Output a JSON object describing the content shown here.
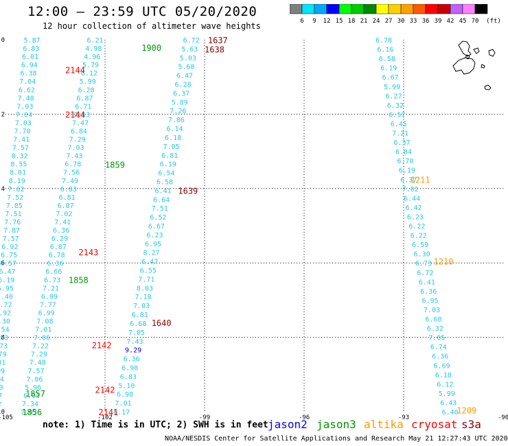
{
  "header": {
    "title": "12:00 – 23:59 UTC 05/20/2020",
    "subtitle": "12 hour collection of altimeter wave heights"
  },
  "colorbar": {
    "unit_label": "(ft)",
    "levels": [
      {
        "label": "3",
        "color": "#7f7f7f"
      },
      {
        "label": "6",
        "color": "#00e5ff"
      },
      {
        "label": "9",
        "color": "#00a8ff"
      },
      {
        "label": "12",
        "color": "#0000ff"
      },
      {
        "label": "15",
        "color": "#00ff00"
      },
      {
        "label": "18",
        "color": "#00cc00"
      },
      {
        "label": "21",
        "color": "#008a00"
      },
      {
        "label": "24",
        "color": "#ffff00"
      },
      {
        "label": "27",
        "color": "#ffd000"
      },
      {
        "label": "30",
        "color": "#ffa000"
      },
      {
        "label": "33",
        "color": "#ff5a00"
      },
      {
        "label": "36",
        "color": "#ff0000"
      },
      {
        "label": "39",
        "color": "#c80000"
      },
      {
        "label": "42",
        "color": "#c060ff"
      },
      {
        "label": "45",
        "color": "#ff80ff"
      },
      {
        "label": "70",
        "color": "#000000"
      }
    ]
  },
  "footer": {
    "note": "note: 1) Time is in UTC; 2) SWH is in feet",
    "satellites": [
      {
        "name": "jason2",
        "color": "#0000ff"
      },
      {
        "name": "jason3",
        "color": "#009600"
      },
      {
        "name": "altika",
        "color": "#ff9900"
      },
      {
        "name": "cryosat",
        "color": "#ff0000"
      },
      {
        "name": "s3a",
        "color": "#8b0000"
      }
    ],
    "credit": "NOAA/NESDIS Center for Satellite Applications and Research   May 21 12:27:43 UTC 2020"
  },
  "chart_data": {
    "type": "scatter",
    "xlabel": "",
    "ylabel": "",
    "xlim": [
      -105,
      -90
    ],
    "ylim": [
      -10,
      0
    ],
    "x_ticks": [
      "-105",
      "-102",
      "-99",
      "-96",
      "-93",
      "-90"
    ],
    "y_ticks": [
      "0",
      "-2",
      "-4",
      "-6",
      "-8",
      "-10"
    ],
    "grid": "dotted",
    "series": [
      {
        "name": "track-1",
        "color": "#22c8e8",
        "x0": -104.2,
        "y0": 0.0,
        "x1": -105.4,
        "y1": -10.0,
        "values": [
          "5.87",
          "6.83",
          "6.01",
          "6.94",
          "6.38",
          "7.04",
          "6.62",
          "7.48",
          "7.03",
          "7.04",
          "7.03",
          "7.70",
          "7.41",
          "7.57",
          "8.32",
          "8.55",
          "8.01",
          "8.19",
          "7.62",
          "7.52",
          "7.85",
          "7.51",
          "7.76",
          "7.87",
          "7.57",
          "6.92",
          "6.75",
          "6.57",
          "6.47",
          "6.19",
          "5.95",
          "6.40",
          "6.72",
          "6.92",
          "6.30",
          "7.54",
          "6.83",
          "6.73",
          "6.79",
          "6.31",
          "6.99",
          "6.94",
          "6.50",
          "6.67",
          "6.92",
          "6.29"
        ]
      },
      {
        "name": "track-2",
        "color": "#22c8e8",
        "x0": -102.3,
        "y0": 0.0,
        "x1": -104.3,
        "y1": -10.0,
        "values": [
          "6.21",
          "4.98",
          "4.96",
          "5.79",
          "6.12",
          "5.99",
          "6.28",
          "6.87",
          "6.71",
          "7.13",
          "7.47",
          "6.84",
          "7.29",
          "7.03",
          "7.43",
          "6.78",
          "7.56",
          "7.49",
          "6.83",
          "6.81",
          "6.87",
          "7.02",
          "7.41",
          "6.36",
          "6.29",
          "6.87",
          "6.78",
          "6.36",
          "6.66",
          "6.73",
          "7.21",
          "6.99",
          "7.77",
          "6.99",
          "7.08",
          "7.01",
          "7.06",
          "7.22",
          "7.29",
          "7.48",
          "7.57",
          "7.06",
          "5.96",
          "6.91",
          "7.34",
          "7.03"
        ]
      },
      {
        "name": "track-3",
        "color": "#22c8e8",
        "x0": -99.4,
        "y0": 0.0,
        "x1": -101.5,
        "y1": -10.0,
        "values": [
          "6.72",
          "5.63",
          "5.03",
          "5.68",
          "6.47",
          "6.28",
          "6.37",
          "5.89",
          "7.26",
          "7.86",
          "6.14",
          "6.18",
          "7.05",
          "6.81",
          "6.19",
          "6.54",
          "6.58",
          "6.41",
          "6.64",
          "7.51",
          "6.52",
          "6.67",
          "6.23",
          "6.95",
          "8.27",
          "6.47",
          "6.55",
          "7.71",
          "8.03",
          "7.18",
          "7.03",
          "6.81",
          "6.68",
          "7.05",
          "7.43",
          "9.29",
          "6.36",
          "6.90",
          "6.83",
          "5.10",
          "6.98",
          "7.01",
          "6.17"
        ]
      },
      {
        "name": "track-4",
        "color": "#22c8e8",
        "x0": -93.6,
        "y0": 0.0,
        "x1": -91.6,
        "y1": -10.0,
        "values": [
          "6.78",
          "6.16",
          "6.58",
          "6.19",
          "6.67",
          "5.99",
          "6.27",
          "6.32",
          "6.57",
          "6.45",
          "7.21",
          "6.37",
          "6.84",
          "6.70",
          "6.19",
          "6.37",
          "7.02",
          "6.44",
          "6.42",
          "6.23",
          "6.22",
          "6.22",
          "6.59",
          "6.30",
          "6.73",
          "6.72",
          "6.41",
          "6.36",
          "6.95",
          "7.03",
          "6.60",
          "6.32",
          "7.05",
          "6.74",
          "6.36",
          "6.69",
          "6.18",
          "6.12",
          "5.99",
          "6.43",
          "6.40"
        ]
      }
    ],
    "time_labels": [
      {
        "text": "1637",
        "color": "#8b0000",
        "x": -98.6,
        "y": 0.0
      },
      {
        "text": "1638",
        "color": "#8b0000",
        "x": -98.7,
        "y": -0.25
      },
      {
        "text": "1900",
        "color": "#009600",
        "x": -100.6,
        "y": -0.2
      },
      {
        "text": "2144",
        "color": "#ff0000",
        "x": -102.9,
        "y": -0.8
      },
      {
        "text": "2144",
        "color": "#ff0000",
        "x": -102.9,
        "y": -2.0
      },
      {
        "text": "1859",
        "color": "#009600",
        "x": -101.7,
        "y": -3.35
      },
      {
        "text": "1639",
        "color": "#8b0000",
        "x": -99.5,
        "y": -4.05
      },
      {
        "text": "2143",
        "color": "#ff0000",
        "x": -102.5,
        "y": -5.7
      },
      {
        "text": "1858",
        "color": "#009600",
        "x": -102.8,
        "y": -6.45
      },
      {
        "text": "1640",
        "color": "#8b0000",
        "x": -100.3,
        "y": -7.6
      },
      {
        "text": "2142",
        "color": "#ff0000",
        "x": -102.1,
        "y": -8.2
      },
      {
        "text": "2142",
        "color": "#ff0000",
        "x": -102.0,
        "y": -9.4
      },
      {
        "text": "1857",
        "color": "#009600",
        "x": -104.1,
        "y": -9.5
      },
      {
        "text": "2141",
        "color": "#ff0000",
        "x": -101.9,
        "y": -10.0
      },
      {
        "text": "1856",
        "color": "#009600",
        "x": -104.2,
        "y": -10.0
      },
      {
        "text": "1211",
        "color": "#ff9900",
        "x": -92.5,
        "y": -3.75
      },
      {
        "text": "1210",
        "color": "#ff9900",
        "x": -91.8,
        "y": -5.95
      },
      {
        "text": "1209",
        "color": "#ff9900",
        "x": -91.1,
        "y": -9.95
      }
    ]
  }
}
